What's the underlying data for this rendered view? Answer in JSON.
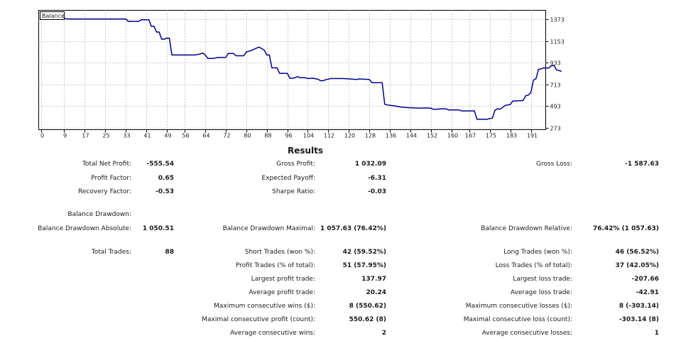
{
  "chart_data": {
    "type": "line",
    "title": "Balance",
    "x_ticks": [
      0,
      9,
      17,
      25,
      33,
      41,
      49,
      56,
      64,
      72,
      80,
      88,
      96,
      104,
      112,
      120,
      128,
      136,
      144,
      152,
      160,
      167,
      175,
      183,
      191
    ],
    "y_ticks": [
      273,
      493,
      713,
      933,
      1153,
      1373
    ],
    "xlim": [
      0,
      195
    ],
    "ylim": [
      255,
      1462
    ],
    "grid": true,
    "series": [
      {
        "name": "Balance",
        "color": "#00008b",
        "points": [
          [
            0,
            1394
          ],
          [
            5,
            1394
          ],
          [
            6,
            1384
          ],
          [
            9,
            1384
          ],
          [
            10,
            1374
          ],
          [
            20,
            1374
          ],
          [
            33,
            1374
          ],
          [
            34,
            1350
          ],
          [
            38,
            1350
          ],
          [
            39,
            1366
          ],
          [
            42,
            1366
          ],
          [
            43,
            1300
          ],
          [
            44,
            1300
          ],
          [
            45,
            1242
          ],
          [
            46,
            1242
          ],
          [
            47,
            1170
          ],
          [
            48,
            1170
          ],
          [
            49,
            1180
          ],
          [
            50,
            1180
          ],
          [
            51,
            1010
          ],
          [
            52,
            1010
          ],
          [
            60,
            1010
          ],
          [
            62,
            1020
          ],
          [
            63,
            1030
          ],
          [
            64,
            1010
          ],
          [
            65,
            975
          ],
          [
            67,
            975
          ],
          [
            69,
            985
          ],
          [
            72,
            985
          ],
          [
            73,
            1025
          ],
          [
            75,
            1025
          ],
          [
            76,
            1002
          ],
          [
            79,
            1002
          ],
          [
            80,
            1040
          ],
          [
            82,
            1055
          ],
          [
            84,
            1080
          ],
          [
            85,
            1090
          ],
          [
            86,
            1075
          ],
          [
            87,
            1060
          ],
          [
            88,
            1010
          ],
          [
            89,
            1010
          ],
          [
            90,
            880
          ],
          [
            92,
            880
          ],
          [
            93,
            825
          ],
          [
            96,
            825
          ],
          [
            97,
            775
          ],
          [
            98,
            775
          ],
          [
            99,
            780
          ],
          [
            100,
            792
          ],
          [
            101,
            780
          ],
          [
            103,
            780
          ],
          [
            104,
            772
          ],
          [
            106,
            775
          ],
          [
            108,
            765
          ],
          [
            109,
            750
          ],
          [
            110,
            750
          ],
          [
            111,
            760
          ],
          [
            113,
            772
          ],
          [
            118,
            772
          ],
          [
            123,
            762
          ],
          [
            124,
            768
          ],
          [
            126,
            765
          ],
          [
            128,
            762
          ],
          [
            129,
            730
          ],
          [
            133,
            730
          ],
          [
            134,
            512
          ],
          [
            135,
            505
          ],
          [
            138,
            495
          ],
          [
            140,
            485
          ],
          [
            143,
            478
          ],
          [
            148,
            472
          ],
          [
            150,
            475
          ],
          [
            152,
            472
          ],
          [
            153,
            460
          ],
          [
            156,
            465
          ],
          [
            158,
            465
          ],
          [
            159,
            455
          ],
          [
            163,
            455
          ],
          [
            164,
            445
          ],
          [
            169,
            445
          ],
          [
            170,
            360
          ],
          [
            174,
            360
          ],
          [
            175,
            368
          ],
          [
            176,
            372
          ],
          [
            177,
            450
          ],
          [
            178,
            468
          ],
          [
            179,
            462
          ],
          [
            180,
            480
          ],
          [
            181,
            500
          ],
          [
            183,
            510
          ],
          [
            184,
            545
          ],
          [
            187,
            548
          ],
          [
            188,
            550
          ],
          [
            189,
            598
          ],
          [
            190,
            605
          ],
          [
            191,
            630
          ],
          [
            192,
            755
          ],
          [
            193,
            770
          ],
          [
            194,
            865
          ],
          [
            195,
            870
          ],
          [
            196,
            880
          ],
          [
            198,
            878
          ],
          [
            199,
            900
          ],
          [
            200,
            905
          ],
          [
            201,
            860
          ],
          [
            203,
            845
          ]
        ]
      }
    ]
  },
  "results_title": "Results",
  "stats": [
    {
      "label": "Total Net Profit:",
      "value": "-555.54"
    },
    {
      "label": "Gross Profit:",
      "value": "1 032.09"
    },
    {
      "label": "Gross Loss:",
      "value": "-1 587.63"
    },
    {
      "label": "Profit Factor:",
      "value": "0.65"
    },
    {
      "label": "Expected Payoff:",
      "value": "-6.31"
    },
    {
      "label": "Recovery Factor:",
      "value": "-0.53"
    },
    {
      "label": "Sharpe Ratio:",
      "value": "-0.03"
    },
    {
      "label": "Balance Drawdown:",
      "value": ""
    },
    {
      "label": "Balance Drawdown Absolute:",
      "value": "1 050.51"
    },
    {
      "label": "Balance Drawdown Maximal:",
      "value": "1 057.63 (76.42%)"
    },
    {
      "label": "Balance Drawdown Relative:",
      "value": "76.42% (1 057.63)"
    },
    {
      "label": "Total Trades:",
      "value": "88"
    },
    {
      "label": "Short Trades (won %):",
      "value": "42 (59.52%)"
    },
    {
      "label": "Long Trades (won %):",
      "value": "46 (56.52%)"
    },
    {
      "label": "Profit Trades (% of total):",
      "value": "51 (57.95%)"
    },
    {
      "label": "Loss Trades (% of total):",
      "value": "37 (42.05%)"
    },
    {
      "label": "Largest profit trade:",
      "value": "137.97"
    },
    {
      "label": "Largest loss trade:",
      "value": "-207.66"
    },
    {
      "label": "Average profit trade:",
      "value": "20.24"
    },
    {
      "label": "Average loss trade:",
      "value": "-42.91"
    },
    {
      "label": "Maximum consecutive wins ($):",
      "value": "8 (550.62)"
    },
    {
      "label": "Maximum consecutive losses ($):",
      "value": "8 (-303.14)"
    },
    {
      "label": "Maximal consecutive profit (count):",
      "value": "550.62 (8)"
    },
    {
      "label": "Maximal consecutive loss (count):",
      "value": "-303.14 (8)"
    },
    {
      "label": "Average consecutive wins:",
      "value": "2"
    },
    {
      "label": "Average consecutive losses:",
      "value": "1"
    }
  ]
}
